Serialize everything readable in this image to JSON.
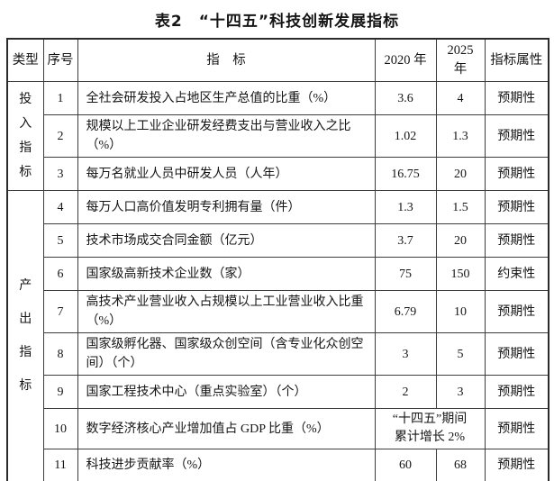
{
  "page": {
    "title": "表2　“十四五”科技创新发展指标"
  },
  "table": {
    "headers": [
      "类型",
      "序号",
      "指　标",
      "2020 年",
      "2025 年",
      "指标属性"
    ],
    "groups": [
      {
        "type": "投入指标",
        "rows": [
          {
            "no": "1",
            "indicator": "全社会研发投入占地区生产总值的比重（%）",
            "y2020": "3.6",
            "y2025": "4",
            "attribute": "预期性"
          },
          {
            "no": "2",
            "indicator": "规模以上工业企业研发经费支出与营业收入之比（%）",
            "y2020": "1.02",
            "y2025": "1.3",
            "attribute": "预期性"
          },
          {
            "no": "3",
            "indicator": "每万名就业人员中研发人员（人年）",
            "y2020": "16.75",
            "y2025": "20",
            "attribute": "预期性"
          }
        ]
      },
      {
        "type": "产出指标",
        "rows": [
          {
            "no": "4",
            "indicator": "每万人口高价值发明专利拥有量（件）",
            "y2020": "1.3",
            "y2025": "1.5",
            "attribute": "预期性"
          },
          {
            "no": "5",
            "indicator": "技术市场成交合同金额（亿元）",
            "y2020": "3.7",
            "y2025": "20",
            "attribute": "预期性"
          },
          {
            "no": "6",
            "indicator": "国家级高新技术企业数（家）",
            "y2020": "75",
            "y2025": "150",
            "attribute": "约束性"
          },
          {
            "no": "7",
            "indicator": "高技术产业营业收入占规模以上工业营业收入比重（%）",
            "y2020": "6.79",
            "y2025": "10",
            "attribute": "预期性"
          },
          {
            "no": "8",
            "indicator": "国家级孵化器、国家级众创空间（含专业化众创空间）（个）",
            "y2020": "3",
            "y2025": "5",
            "attribute": "预期性"
          },
          {
            "no": "9",
            "indicator": "国家工程技术中心（重点实验室）（个）",
            "y2020": "2",
            "y2025": "3",
            "attribute": "预期性"
          },
          {
            "no": "10",
            "indicator": "数字经济核心产业增加值占 GDP 比重（%）",
            "merged_value": "“十四五”期间\n累计增长 2%",
            "attribute": "预期性"
          },
          {
            "no": "11",
            "indicator": "科技进步贡献率（%）",
            "y2020": "60",
            "y2025": "68",
            "attribute": "预期性"
          }
        ]
      }
    ]
  }
}
